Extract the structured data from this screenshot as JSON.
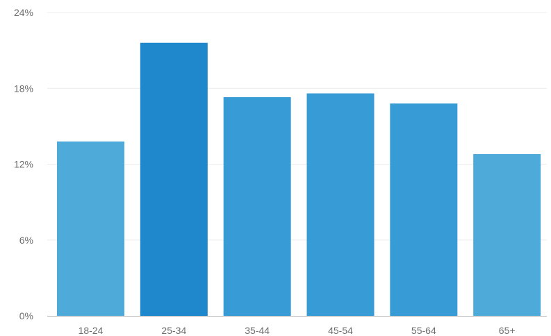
{
  "chart_data": {
    "type": "bar",
    "categories": [
      "18-24",
      "25-34",
      "35-44",
      "45-54",
      "55-64",
      "65+"
    ],
    "values": [
      13.8,
      21.6,
      17.3,
      17.6,
      16.8,
      12.8
    ],
    "ylim": [
      0,
      24
    ],
    "yticks": [
      "0%",
      "6%",
      "12%",
      "18%",
      "24%"
    ],
    "ytick_values": [
      0,
      6,
      12,
      18,
      24
    ],
    "grid": true,
    "bar_colors": [
      "#4eaad9",
      "#1f88cc",
      "#379bd5",
      "#379bd5",
      "#379bd5",
      "#4eaad9"
    ]
  }
}
